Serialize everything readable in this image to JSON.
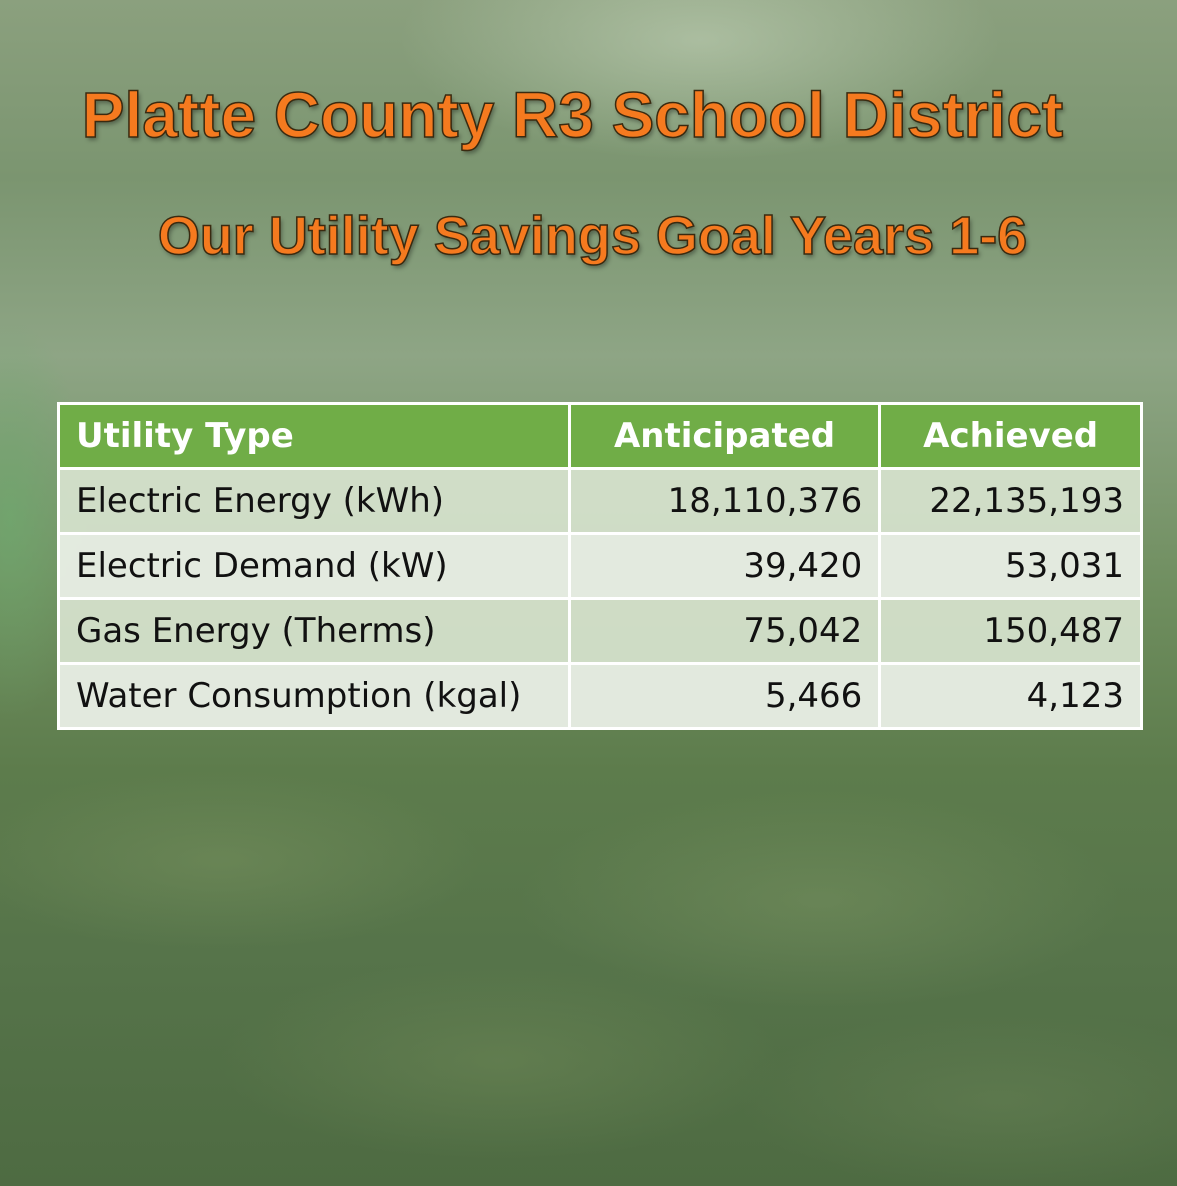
{
  "header": {
    "title": "Platte County R3 School District",
    "subtitle": "Our Utility Savings Goal Years 1-6"
  },
  "table": {
    "columns": [
      "Utility Type",
      "Anticipated",
      "Achieved"
    ],
    "rows": [
      [
        "Electric Energy (kWh)",
        "18,110,376",
        "22,135,193"
      ],
      [
        "Electric Demand (kW)",
        "39,420",
        "53,031"
      ],
      [
        "Gas Energy (Therms)",
        "75,042",
        "150,487"
      ],
      [
        "Water Consumption (kgal)",
        "5,466",
        "4,123"
      ]
    ]
  }
}
